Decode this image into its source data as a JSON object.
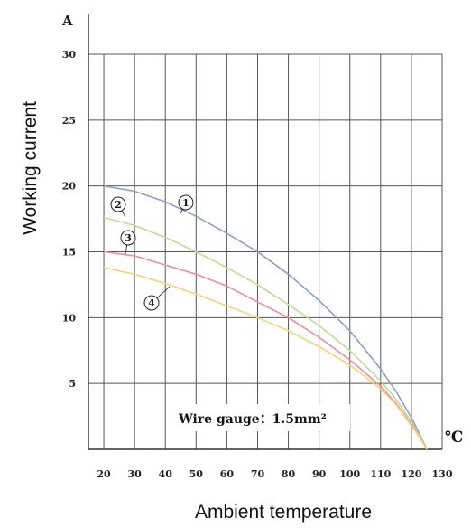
{
  "chart_data": {
    "type": "line",
    "ylabel": "Working current",
    "xlabel": "Ambient temperature",
    "y_unit": "A",
    "x_unit": "℃",
    "xlim": [
      15,
      130
    ],
    "ylim": [
      0,
      30
    ],
    "x_ticks": [
      20,
      30,
      40,
      50,
      60,
      70,
      80,
      90,
      100,
      110,
      120,
      130
    ],
    "y_ticks": [
      5,
      10,
      15,
      20,
      25,
      30
    ],
    "grid": true,
    "annotation": "Wire gauge：1.5mm²",
    "series": [
      {
        "name": "①",
        "color": "#8e9cc8",
        "x": [
          20,
          30,
          40,
          50,
          60,
          70,
          80,
          90,
          100,
          110,
          115,
          120,
          123,
          125
        ],
        "y": [
          20,
          19.6,
          18.8,
          17.7,
          16.4,
          15,
          13.3,
          11.3,
          9,
          6.1,
          4.4,
          2.4,
          1,
          0
        ]
      },
      {
        "name": "②",
        "color": "#bfdc96",
        "x": [
          20,
          30,
          40,
          50,
          60,
          70,
          80,
          90,
          100,
          110,
          115,
          120,
          123,
          125
        ],
        "y": [
          17.6,
          17,
          16.1,
          15,
          13.8,
          12.5,
          11,
          9.4,
          7.5,
          5.2,
          3.8,
          2.1,
          0.9,
          0
        ]
      },
      {
        "name": "③",
        "color": "#e8909c",
        "x": [
          20,
          30,
          40,
          50,
          60,
          70,
          80,
          90,
          100,
          110,
          115,
          120,
          123,
          125
        ],
        "y": [
          15,
          14.7,
          14,
          13.3,
          12.4,
          11.2,
          10,
          8.5,
          6.8,
          4.8,
          3.5,
          1.9,
          0.8,
          0
        ]
      },
      {
        "name": "④",
        "color": "#f4d27a",
        "x": [
          20,
          30,
          40,
          50,
          60,
          70,
          80,
          90,
          100,
          110,
          115,
          120,
          123,
          125
        ],
        "y": [
          13.8,
          13.3,
          12.6,
          11.8,
          10.9,
          10,
          9,
          7.8,
          6.4,
          4.6,
          3.4,
          1.8,
          0.8,
          0
        ]
      }
    ]
  }
}
